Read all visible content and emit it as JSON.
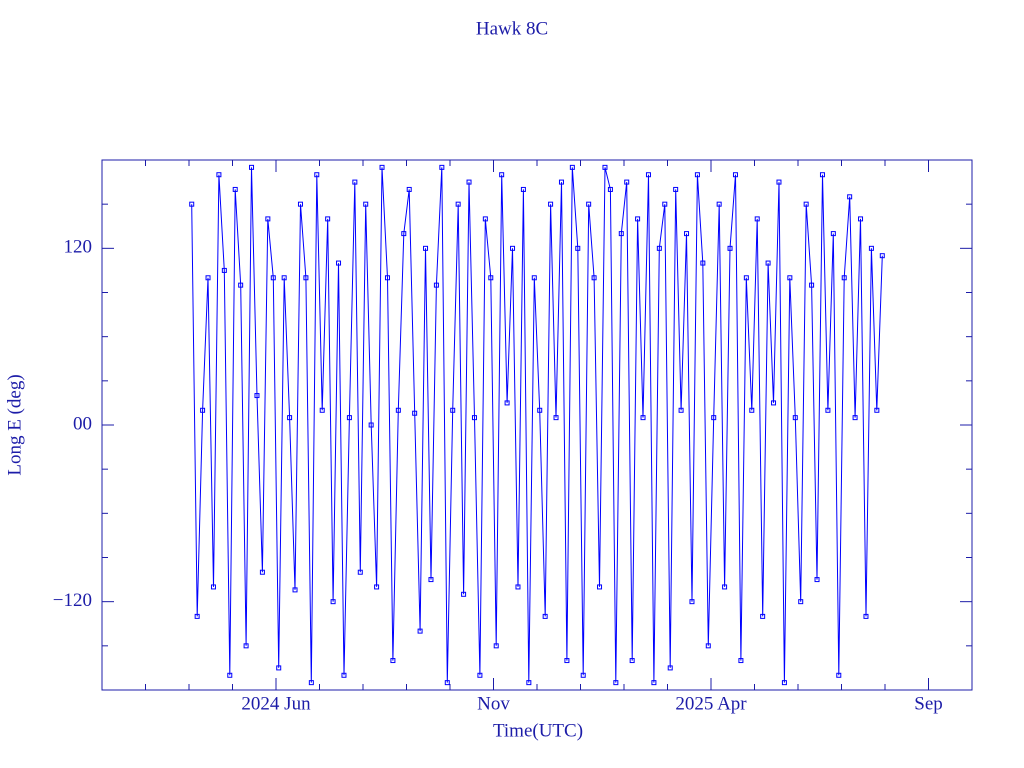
{
  "chart_data": {
    "type": "line",
    "title": "Hawk 8C",
    "x_label": "Time(UTC)",
    "y_label": "Long E (deg)",
    "xlim": [
      "2024-02",
      "2025-10"
    ],
    "xticks": [
      {
        "value": "2024-06",
        "label": "2024 Jun"
      },
      {
        "value": "2024-11",
        "label": "Nov"
      },
      {
        "value": "2025-04",
        "label": "2025 Apr"
      },
      {
        "value": "2025-09",
        "label": "Sep"
      }
    ],
    "ylim": [
      -180,
      180
    ],
    "yticks": [
      {
        "value": -120,
        "label": "−120"
      },
      {
        "value": 0,
        "label": "00"
      },
      120
    ],
    "x": [
      "2024-04",
      "2024-04",
      "2024-04",
      "2024-04",
      "2024-04",
      "2024-04",
      "2024-04",
      "2024-04",
      "2024-05",
      "2024-05",
      "2024-05",
      "2024-05",
      "2024-05",
      "2024-05",
      "2024-05",
      "2024-05",
      "2024-06",
      "2024-06",
      "2024-06",
      "2024-06",
      "2024-06",
      "2024-06",
      "2024-06",
      "2024-06",
      "2024-07",
      "2024-07",
      "2024-07",
      "2024-07",
      "2024-07",
      "2024-07",
      "2024-07",
      "2024-07",
      "2024-08",
      "2024-08",
      "2024-08",
      "2024-08",
      "2024-08",
      "2024-08",
      "2024-08",
      "2024-08",
      "2024-09",
      "2024-09",
      "2024-09",
      "2024-09",
      "2024-09",
      "2024-09",
      "2024-09",
      "2024-09",
      "2024-10",
      "2024-10",
      "2024-10",
      "2024-10",
      "2024-10",
      "2024-10",
      "2024-10",
      "2024-10",
      "2024-11",
      "2024-11",
      "2024-11",
      "2024-11",
      "2024-11",
      "2024-11",
      "2024-11",
      "2024-11",
      "2024-12",
      "2024-12",
      "2024-12",
      "2024-12",
      "2024-12",
      "2024-12",
      "2024-12",
      "2024-12",
      "2025-01",
      "2025-01",
      "2025-01",
      "2025-01",
      "2025-01",
      "2025-01",
      "2025-01",
      "2025-01",
      "2025-02",
      "2025-02",
      "2025-02",
      "2025-02",
      "2025-02",
      "2025-02",
      "2025-02",
      "2025-02",
      "2025-03",
      "2025-03",
      "2025-03",
      "2025-03",
      "2025-03",
      "2025-03",
      "2025-03",
      "2025-03",
      "2025-04",
      "2025-04",
      "2025-04",
      "2025-04",
      "2025-04",
      "2025-04",
      "2025-04",
      "2025-04",
      "2025-05",
      "2025-05",
      "2025-05",
      "2025-05",
      "2025-05",
      "2025-05",
      "2025-05",
      "2025-05",
      "2025-06",
      "2025-06",
      "2025-06",
      "2025-06",
      "2025-06",
      "2025-06",
      "2025-06",
      "2025-06",
      "2025-07",
      "2025-07",
      "2025-07",
      "2025-07",
      "2025-07",
      "2025-07",
      "2025-07",
      "2025-07"
    ],
    "series": [
      {
        "color": "#0000ff",
        "values": [
          150,
          -130,
          10,
          100,
          -110,
          170,
          105,
          -170,
          160,
          95,
          -150,
          175,
          20,
          -100,
          140,
          100,
          -165,
          100,
          5,
          -112,
          150,
          100,
          -175,
          170,
          10,
          140,
          -120,
          110,
          -170,
          5,
          165,
          -100,
          150,
          0,
          -110,
          175,
          100,
          -160,
          10,
          130,
          160,
          8,
          -140,
          120,
          -105,
          95,
          175,
          -175,
          10,
          150,
          -115,
          165,
          5,
          -170,
          140,
          100,
          -150,
          170,
          15,
          120,
          -110,
          160,
          -175,
          100,
          10,
          -130,
          150,
          5,
          165,
          -160,
          175,
          120,
          -170,
          150,
          100,
          -110,
          175,
          160,
          -175,
          130,
          165,
          -160,
          140,
          5,
          170,
          -175,
          120,
          150,
          -165,
          160,
          10,
          130,
          -120,
          170,
          110,
          -150,
          5,
          150,
          -110,
          120,
          170,
          -160,
          100,
          10,
          140,
          -130,
          110,
          15,
          165,
          -175,
          100,
          5,
          -120,
          150,
          95,
          -105,
          170,
          10,
          130,
          -170,
          100,
          155,
          5,
          140,
          -130,
          120,
          10,
          115
        ]
      }
    ]
  }
}
